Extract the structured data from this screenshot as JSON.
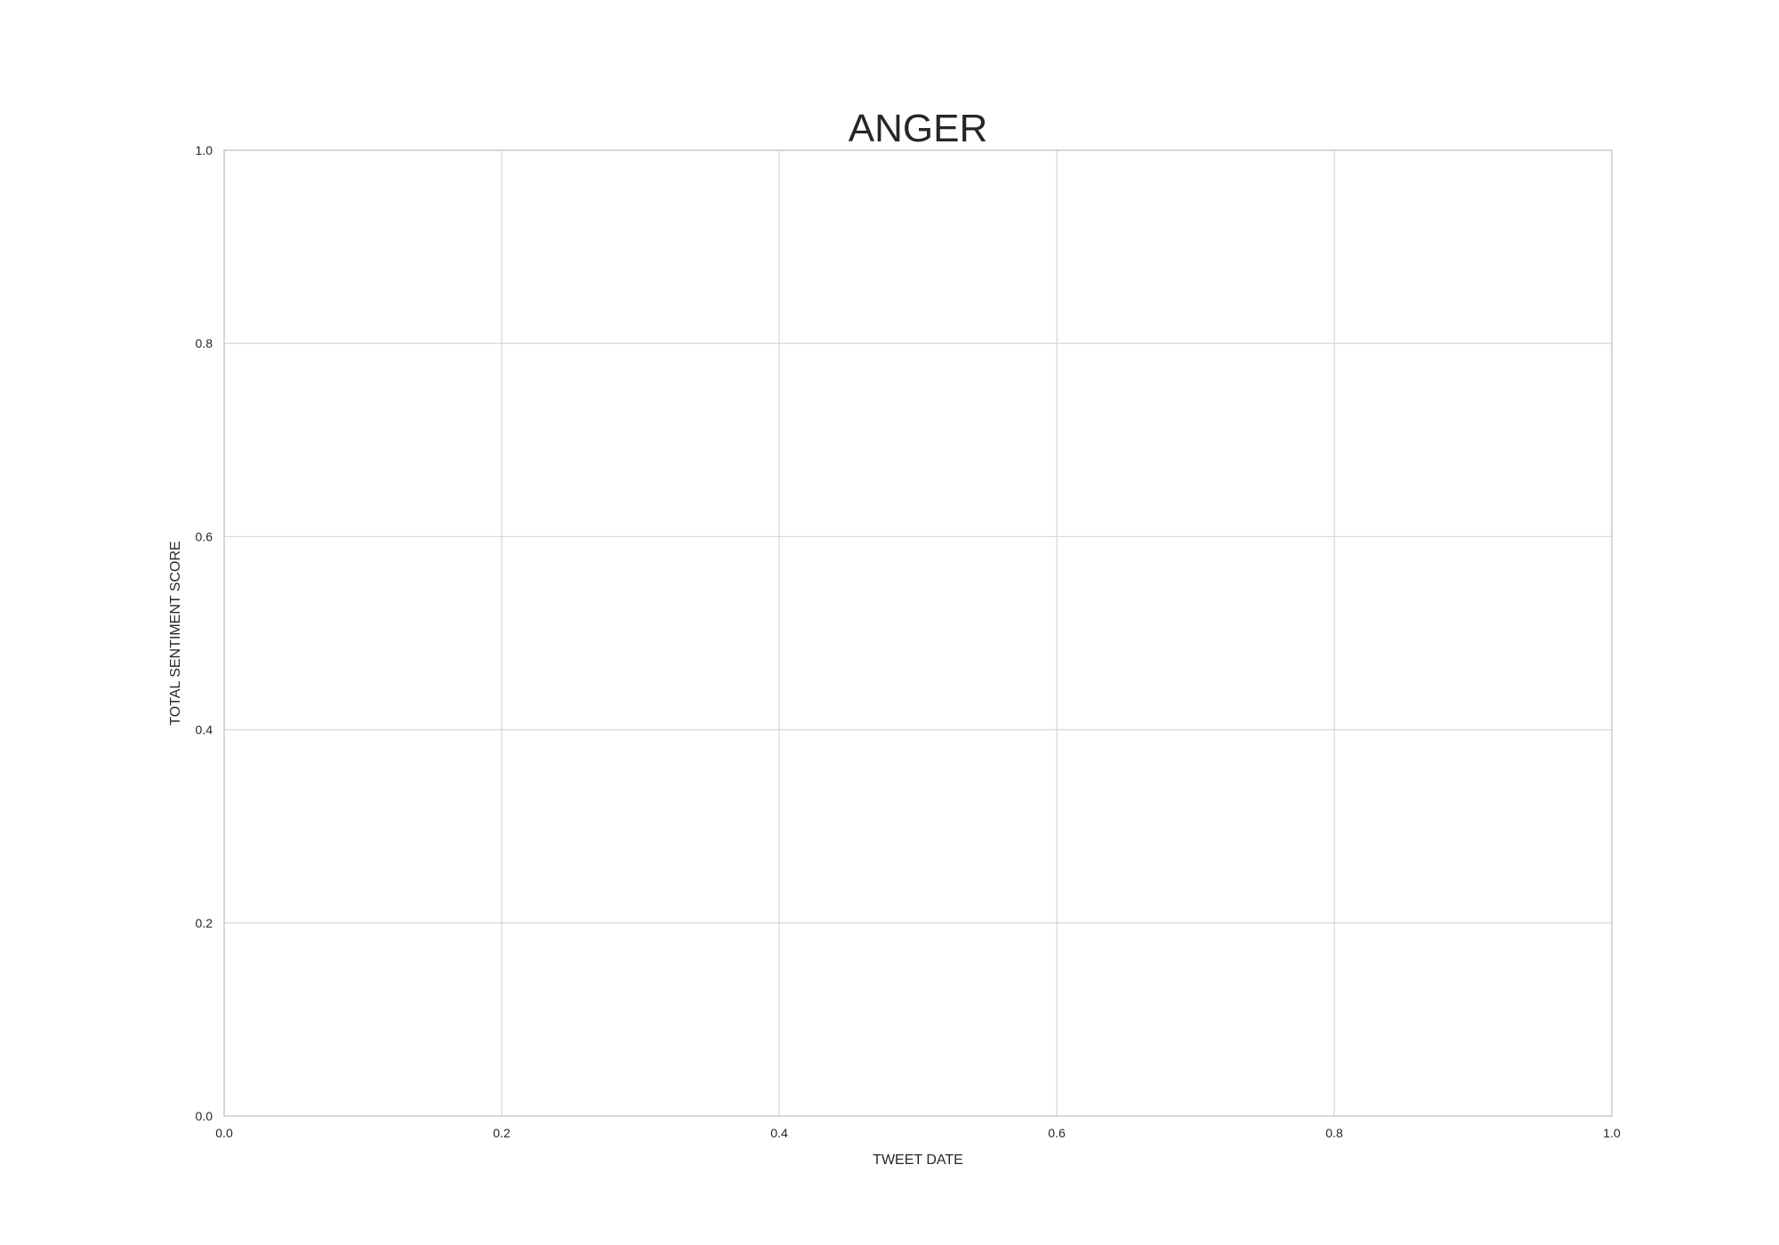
{
  "chart_data": {
    "type": "line",
    "title": "ANGER",
    "xlabel": "TWEET DATE",
    "ylabel": "TOTAL SENTIMENT SCORE",
    "xlim": [
      0.0,
      1.0
    ],
    "ylim": [
      0.0,
      1.0
    ],
    "x_ticks": [
      "0.0",
      "0.2",
      "0.4",
      "0.6",
      "0.8",
      "1.0"
    ],
    "y_ticks": [
      "0.0",
      "0.2",
      "0.4",
      "0.6",
      "0.8",
      "1.0"
    ],
    "grid": true,
    "series": [],
    "colors": {
      "grid": "#d9d9d9",
      "frame": "#cccccc",
      "text": "#262626",
      "background": "#ffffff"
    }
  }
}
